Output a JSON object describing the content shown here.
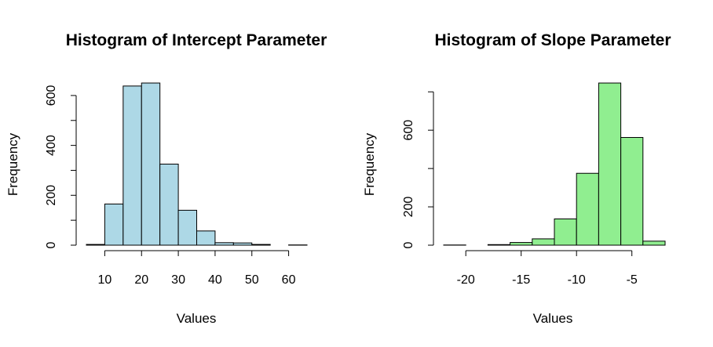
{
  "chart_data": [
    {
      "type": "bar",
      "title": "Histogram of Intercept Parameter",
      "xlabel": "Values",
      "ylabel": "Frequency",
      "bar_color": "#add8e6",
      "bins": [
        {
          "start": 5,
          "end": 10,
          "count": 3
        },
        {
          "start": 10,
          "end": 15,
          "count": 165
        },
        {
          "start": 15,
          "end": 20,
          "count": 638
        },
        {
          "start": 20,
          "end": 25,
          "count": 650
        },
        {
          "start": 25,
          "end": 30,
          "count": 325
        },
        {
          "start": 30,
          "end": 35,
          "count": 140
        },
        {
          "start": 35,
          "end": 40,
          "count": 57
        },
        {
          "start": 40,
          "end": 45,
          "count": 10
        },
        {
          "start": 45,
          "end": 50,
          "count": 9
        },
        {
          "start": 50,
          "end": 55,
          "count": 3
        },
        {
          "start": 55,
          "end": 60,
          "count": 0
        },
        {
          "start": 60,
          "end": 65,
          "count": 1
        }
      ],
      "xlim": [
        5,
        65
      ],
      "ylim": [
        0,
        650
      ],
      "xticks": [
        10,
        20,
        30,
        40,
        50,
        60
      ],
      "xtick_labels": [
        "10",
        "20",
        "30",
        "40",
        "50",
        "60"
      ],
      "yticks": [
        0,
        100,
        200,
        300,
        400,
        500,
        600
      ],
      "ytick_labels": [
        "0",
        "",
        "200",
        "",
        "400",
        "",
        "600"
      ],
      "grid": false,
      "legend": false
    },
    {
      "type": "bar",
      "title": "Histogram of Slope Parameter",
      "xlabel": "Values",
      "ylabel": "Frequency",
      "bar_color": "#90ee90",
      "bins": [
        {
          "start": -22,
          "end": -20,
          "count": 1
        },
        {
          "start": -20,
          "end": -18,
          "count": 0
        },
        {
          "start": -18,
          "end": -16,
          "count": 3
        },
        {
          "start": -16,
          "end": -14,
          "count": 14
        },
        {
          "start": -14,
          "end": -12,
          "count": 33
        },
        {
          "start": -12,
          "end": -10,
          "count": 137
        },
        {
          "start": -10,
          "end": -8,
          "count": 375
        },
        {
          "start": -8,
          "end": -6,
          "count": 846
        },
        {
          "start": -6,
          "end": -4,
          "count": 562
        },
        {
          "start": -4,
          "end": -2,
          "count": 21
        }
      ],
      "xlim": [
        -22,
        -2
      ],
      "ylim": [
        0,
        846
      ],
      "xticks": [
        -20,
        -15,
        -10,
        -5
      ],
      "xtick_labels": [
        "-20",
        "-15",
        "-10",
        "-5"
      ],
      "yticks": [
        0,
        200,
        400,
        600,
        800
      ],
      "ytick_labels": [
        "0",
        "200",
        "",
        "600",
        ""
      ],
      "grid": false,
      "legend": false
    }
  ]
}
